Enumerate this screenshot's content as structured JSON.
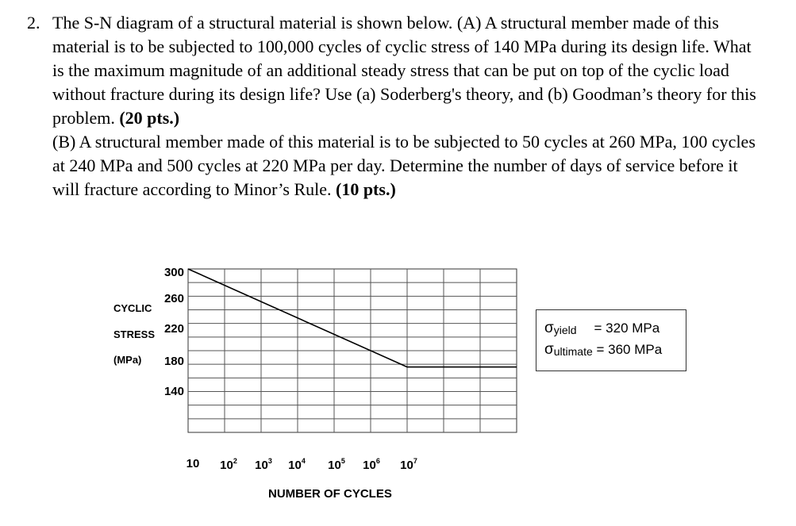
{
  "problem": {
    "number": "2.",
    "partA_text": "The S-N diagram of a structural material is shown below. (A) A structural member made of this material is to be subjected to 100,000 cycles of cyclic stress of 140 MPa during its design life. What is the maximum magnitude of an additional steady stress that can be put on top of the cyclic load without fracture during its design life? Use (a) Soderberg's theory, and (b) Goodman’s theory for this problem.",
    "partA_points": "(20 pts.)",
    "partB_text": "(B) A structural member made of this material is to be subjected to 50 cycles at 260 MPa, 100 cycles at 240 MPa and 500 cycles at 220 MPa per day. Determine the number of days of service before it will fracture according to Minor’s Rule.",
    "partB_points": "(10 pts.)"
  },
  "chart_data": {
    "type": "line",
    "title": "",
    "ylabel_lines": [
      "CYCLIC",
      "STRESS",
      "(MPa)"
    ],
    "xlabel": "NUMBER OF CYCLES",
    "x_scale": "log",
    "xlim": [
      10,
      10000000000
    ],
    "ylim": [
      100,
      300
    ],
    "y_ticks": [
      300,
      260,
      220,
      180,
      140
    ],
    "x_ticks": [
      {
        "base": "10",
        "exp": ""
      },
      {
        "base": "10",
        "exp": "2"
      },
      {
        "base": "10",
        "exp": "3"
      },
      {
        "base": "10",
        "exp": "4"
      },
      {
        "base": "10",
        "exp": "5"
      },
      {
        "base": "10",
        "exp": "6"
      },
      {
        "base": "10",
        "exp": "7"
      }
    ],
    "grid": true,
    "series": [
      {
        "color": "#000000",
        "points": [
          [
            10,
            300
          ],
          [
            10000000,
            180
          ],
          [
            10000000000,
            180
          ]
        ]
      }
    ]
  },
  "properties": {
    "yield_symbol": "σ",
    "yield_sub": "yield",
    "yield_value": "= 320 MPa",
    "ultimate_symbol": "σ",
    "ultimate_sub": "ultimate",
    "ultimate_value": "= 360 MPa"
  }
}
